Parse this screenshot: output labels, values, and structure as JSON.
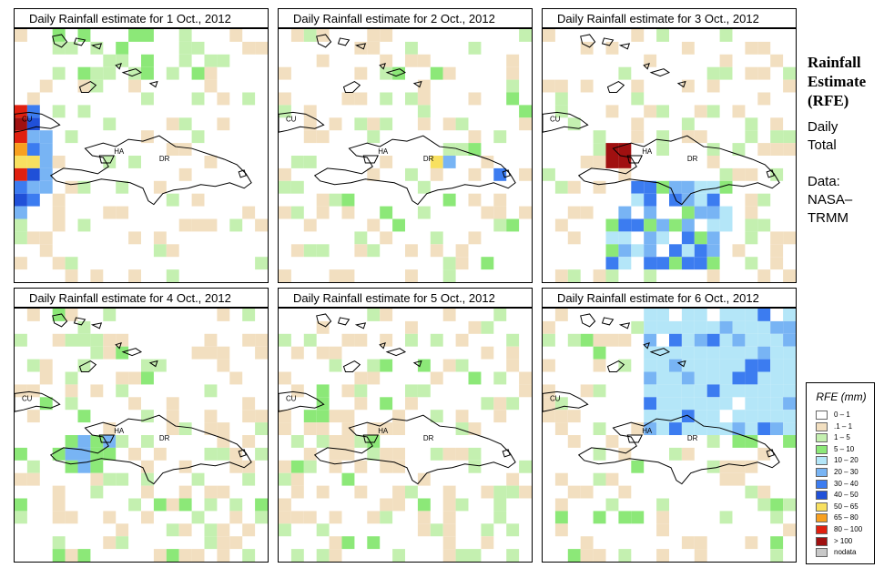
{
  "panels": [
    {
      "title": "Daily Rainfall estimate for  1 Oct., 2012",
      "day": 1
    },
    {
      "title": "Daily Rainfall estimate for  2 Oct., 2012",
      "day": 2
    },
    {
      "title": "Daily Rainfall estimate for  3 Oct., 2012",
      "day": 3
    },
    {
      "title": "Daily Rainfall estimate for  4 Oct., 2012",
      "day": 4
    },
    {
      "title": "Daily Rainfall estimate for  5 Oct., 2012",
      "day": 5
    },
    {
      "title": "Daily Rainfall estimate for  6 Oct., 2012",
      "day": 6
    }
  ],
  "map_labels": {
    "cuba": "CU",
    "haiti": "HA",
    "dominican_republic": "DR"
  },
  "side": {
    "title_line1": "Rainfall",
    "title_line2": "Estimate",
    "title_line3": "(RFE)",
    "period_line1": "Daily",
    "period_line2": "Total",
    "source_line1": "Data:",
    "source_line2": "NASA–",
    "source_line3": "TRMM"
  },
  "legend": {
    "title": "RFE (mm)",
    "items": [
      {
        "label": "0 – 1",
        "color": "#ffffff"
      },
      {
        "label": ".1 – 1",
        "color": "#f2dfc0"
      },
      {
        "label": "1 – 5",
        "color": "#c4f0b0"
      },
      {
        "label": "5 – 10",
        "color": "#8ce878"
      },
      {
        "label": "10 – 20",
        "color": "#b4e6f8"
      },
      {
        "label": "20 – 30",
        "color": "#78b4f4"
      },
      {
        "label": "30 – 40",
        "color": "#3c7cf0"
      },
      {
        "label": "40 – 50",
        "color": "#2050d8"
      },
      {
        "label": "50 – 65",
        "color": "#f8e060"
      },
      {
        "label": "65 – 80",
        "color": "#f8a020"
      },
      {
        "label": "80 – 100",
        "color": "#e02010"
      },
      {
        "label": "> 100",
        "color": "#a01010"
      },
      {
        "label": "nodata",
        "color": "#c8c8c8"
      }
    ]
  }
}
